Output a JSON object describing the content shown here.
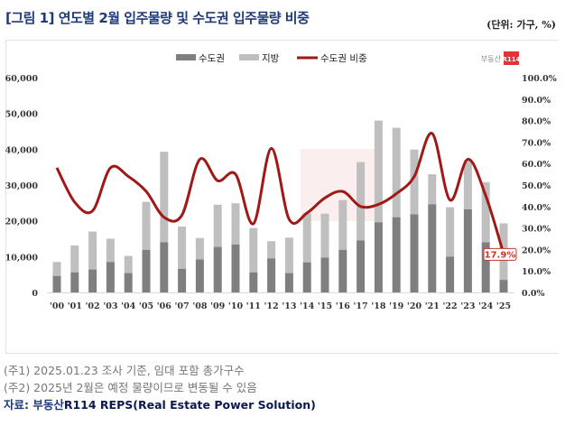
{
  "header": {
    "title": "[그림 1] 연도별 2월 입주물량 및 수도권 입주물량 비중",
    "unit": "(단위: 가구, %)"
  },
  "logo": {
    "text": "부동산",
    "badge": "R114"
  },
  "chart_data": {
    "type": "bar",
    "title": "연도별 2월 입주물량 및 수도권 입주물량 비중",
    "categories": [
      "'00",
      "'01",
      "'02",
      "'03",
      "'04",
      "'05",
      "'06",
      "'07",
      "'08",
      "'09",
      "'10",
      "'11",
      "'12",
      "'13",
      "'14",
      "'15",
      "'16",
      "'17",
      "'18",
      "'19",
      "'20",
      "'21",
      "'22",
      "'23",
      "'24",
      "'25"
    ],
    "series": [
      {
        "name": "수도권",
        "type": "bar",
        "color": "#7f7f7f",
        "values": [
          4600,
          5600,
          6400,
          8500,
          5400,
          11900,
          14000,
          6600,
          9200,
          12700,
          13400,
          5600,
          9500,
          5400,
          8400,
          9700,
          11900,
          14500,
          19600,
          21000,
          21800,
          24600,
          10000,
          23200,
          14000,
          3500
        ]
      },
      {
        "name": "지방",
        "type": "bar",
        "color": "#bfbfbf",
        "values": [
          3900,
          7500,
          10600,
          6500,
          4800,
          13400,
          25300,
          11800,
          6000,
          11800,
          11500,
          12400,
          4800,
          9900,
          13700,
          12300,
          13900,
          21900,
          28400,
          25000,
          18100,
          8400,
          13800,
          13800,
          16800,
          15800
        ]
      },
      {
        "name": "수도권 비중",
        "type": "line",
        "axis": "right",
        "color": "#a01818",
        "values": [
          58,
          42,
          38,
          58,
          54,
          47,
          35,
          36,
          62,
          52,
          55,
          32,
          67,
          34,
          37,
          44,
          47,
          40,
          41,
          46,
          54,
          74,
          43,
          62,
          45,
          17.9
        ]
      }
    ],
    "y_left": {
      "ylim": [
        0,
        60000
      ],
      "ticks": [
        "0",
        "10,000",
        "20,000",
        "30,000",
        "40,000",
        "50,000",
        "60,000"
      ]
    },
    "y_right": {
      "ylim": [
        0,
        100
      ],
      "ticks": [
        "0.0%",
        "10.0%",
        "20.0%",
        "30.0%",
        "40.0%",
        "50.0%",
        "60.0%",
        "70.0%",
        "80.0%",
        "90.0%",
        "100.0%"
      ]
    },
    "legend": {
      "position": "top-center",
      "items": [
        "수도권",
        "지방",
        "수도권 비중"
      ]
    },
    "annotation": "17.9%"
  },
  "notes": [
    "(주1) 2025.01.23 조사 기준, 임대 포함 총가구수",
    "(주2) 2025년 2월은 예정 물량이므로 변동될 수 있음"
  ],
  "source": {
    "label": "자료: 부동산",
    "text": "R114 REPS(Real Estate Power Solution)"
  }
}
